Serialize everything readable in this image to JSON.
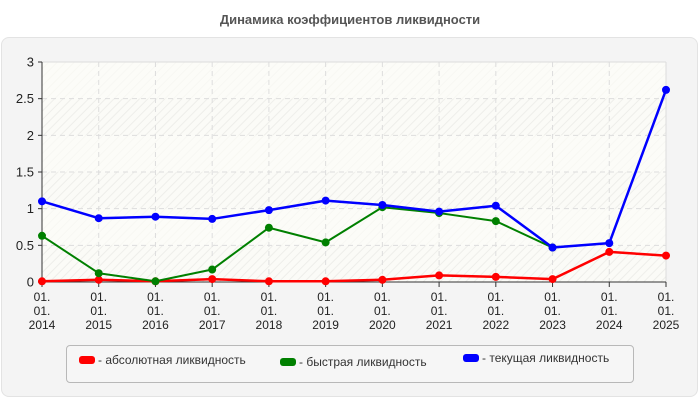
{
  "title": "Динамика коэффициентов ликвидности",
  "chart_data": {
    "type": "line",
    "title": "Динамика коэффициентов ликвидности",
    "xlabel": "",
    "ylabel": "",
    "ylim": [
      0,
      3
    ],
    "yticks": [
      "0",
      "0.5",
      "1",
      "1.5",
      "2",
      "2.5",
      "3"
    ],
    "grid": true,
    "legend_position": "bottom",
    "categories": [
      [
        "01.",
        "01.",
        "2014"
      ],
      [
        "01.",
        "01.",
        "2015"
      ],
      [
        "01.",
        "01.",
        "2016"
      ],
      [
        "01.",
        "01.",
        "2017"
      ],
      [
        "01.",
        "01.",
        "2018"
      ],
      [
        "01.",
        "01.",
        "2019"
      ],
      [
        "01.",
        "01.",
        "2020"
      ],
      [
        "01.",
        "01.",
        "2021"
      ],
      [
        "01.",
        "01.",
        "2022"
      ],
      [
        "01.",
        "01.",
        "2023"
      ],
      [
        "01.",
        "01.",
        "2024"
      ],
      [
        "01.",
        "01.",
        "2025"
      ]
    ],
    "series": [
      {
        "name": "- абсолютная ликвидность",
        "color": "#ff0000",
        "values": [
          0.01,
          0.03,
          0.01,
          0.04,
          0.01,
          0.01,
          0.03,
          0.09,
          0.07,
          0.04,
          0.41,
          0.36
        ]
      },
      {
        "name": "- быстрая ликвидность",
        "color": "#008000",
        "values": [
          0.63,
          0.12,
          0.01,
          0.17,
          0.74,
          0.54,
          1.02,
          0.94,
          0.83,
          0.47,
          null,
          null
        ]
      },
      {
        "name": "- текущая ликвидность",
        "color": "#0000ff",
        "values": [
          1.1,
          0.87,
          0.89,
          0.86,
          0.98,
          1.11,
          1.05,
          0.96,
          1.04,
          0.47,
          0.53,
          2.62
        ]
      }
    ]
  }
}
